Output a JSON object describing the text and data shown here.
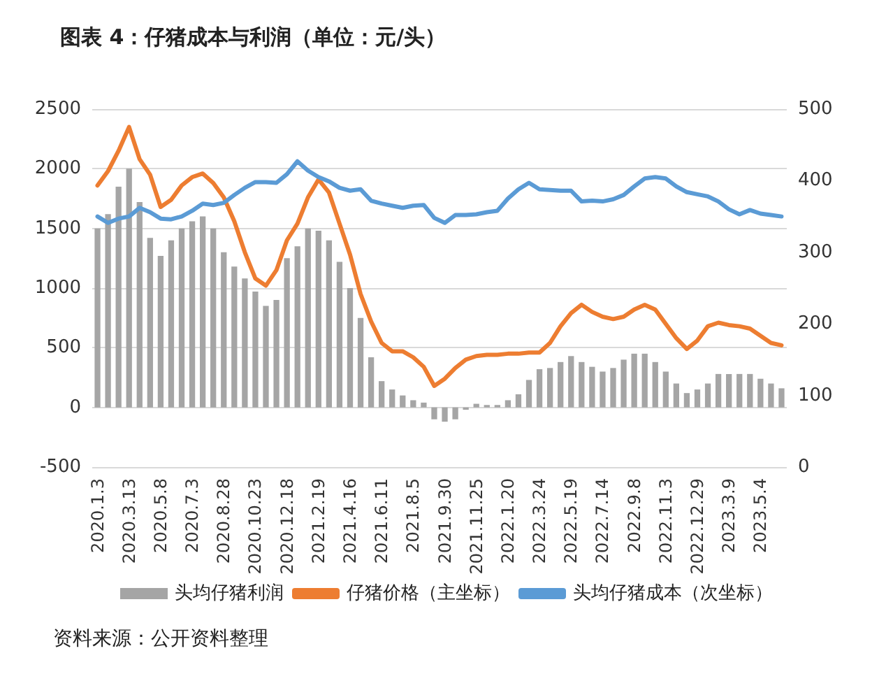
{
  "chart_data": {
    "type": "bar",
    "title": "图表 4：仔猪成本与利润（单位：元/头）",
    "categories": [
      "2020.1.3",
      null,
      null,
      "2020.3.13",
      null,
      null,
      "2020.5.8",
      null,
      null,
      "2020.7.3",
      null,
      null,
      "2020.8.28",
      null,
      null,
      "2020.10.23",
      null,
      null,
      "2020.12.18",
      null,
      null,
      "2021.2.19",
      null,
      null,
      "2021.4.16",
      null,
      null,
      "2021.6.11",
      null,
      null,
      "2021.8.5",
      null,
      null,
      "2021.9.30",
      null,
      null,
      "2021.11.25",
      null,
      null,
      "2022.1.20",
      null,
      null,
      "2022.3.24",
      null,
      null,
      "2022.5.19",
      null,
      null,
      "2022.7.14",
      null,
      null,
      "2022.9.8",
      null,
      null,
      "2022.11.3",
      null,
      null,
      "2022.12.29",
      null,
      null,
      "2023.3.9",
      null,
      null,
      "2023.5.4",
      null,
      null
    ],
    "series": [
      {
        "name": "头均仔猪利润",
        "color": "#a5a5a5",
        "values": [
          1500,
          1620,
          1850,
          2000,
          1720,
          1420,
          1270,
          1400,
          1500,
          1560,
          1600,
          1500,
          1300,
          1180,
          1080,
          970,
          850,
          900,
          1250,
          1350,
          1500,
          1480,
          1400,
          1220,
          1000,
          750,
          420,
          220,
          150,
          100,
          60,
          40,
          -100,
          -120,
          -100,
          -20,
          30,
          20,
          20,
          60,
          110,
          230,
          320,
          330,
          380,
          430,
          380,
          340,
          300,
          330,
          400,
          450,
          450,
          380,
          300,
          200,
          120,
          150,
          200,
          280,
          280,
          280,
          280,
          240,
          200,
          160
        ]
      },
      {
        "name": "仔猪价格（主坐标）",
        "type": "line",
        "color": "#ed7d31",
        "values": [
          1860,
          1980,
          2150,
          2350,
          2080,
          1950,
          1680,
          1740,
          1860,
          1930,
          1960,
          1880,
          1760,
          1560,
          1300,
          1080,
          1020,
          1150,
          1400,
          1540,
          1760,
          1910,
          1800,
          1540,
          1280,
          950,
          720,
          540,
          470,
          470,
          420,
          340,
          180,
          240,
          330,
          400,
          430,
          440,
          440,
          450,
          450,
          460,
          460,
          540,
          680,
          790,
          860,
          800,
          760,
          740,
          760,
          820,
          860,
          820,
          700,
          580,
          490,
          560,
          680,
          710,
          690,
          680,
          660,
          600,
          540,
          520
        ]
      },
      {
        "name": "头均仔猪成本（次坐标）",
        "type": "line",
        "axis": "y2",
        "color": "#5b9bd5",
        "values": [
          350,
          341,
          347,
          350,
          362,
          356,
          347,
          346,
          350,
          358,
          368,
          366,
          369,
          380,
          390,
          398,
          398,
          397,
          409,
          427,
          414,
          405,
          399,
          390,
          386,
          388,
          372,
          368,
          365,
          362,
          365,
          366,
          348,
          341,
          352,
          352,
          353,
          356,
          358,
          375,
          388,
          397,
          388,
          387,
          386,
          386,
          371,
          372,
          371,
          374,
          380,
          392,
          403,
          405,
          403,
          392,
          384,
          381,
          378,
          371,
          360,
          353,
          359,
          354,
          352,
          350
        ]
      }
    ],
    "ylim": [
      -500,
      2500
    ],
    "yticks": [
      -500,
      0,
      500,
      1000,
      1500,
      2000,
      2500
    ],
    "y2lim": [
      0,
      500
    ],
    "y2ticks": [
      0,
      100,
      200,
      300,
      400,
      500
    ],
    "grid": "y",
    "legend": "bottom",
    "marker": "none",
    "annotations": [
      "资料来源：公开资料整理"
    ]
  }
}
